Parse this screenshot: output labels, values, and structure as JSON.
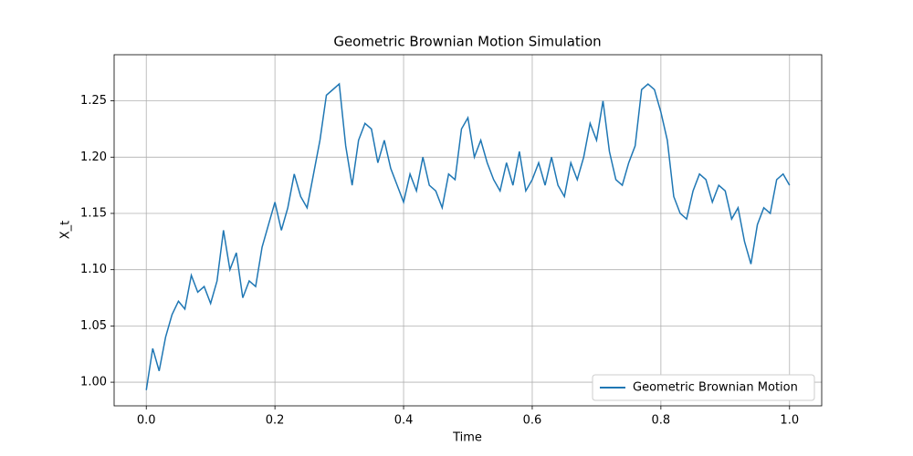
{
  "chart_data": {
    "type": "line",
    "title": "Geometric Brownian Motion Simulation",
    "x_label": "Time",
    "y_label": "X_t",
    "x": [
      0,
      0.01,
      0.02,
      0.03,
      0.04,
      0.05,
      0.06,
      0.07,
      0.08,
      0.09,
      0.1,
      0.11,
      0.12,
      0.13,
      0.14,
      0.15,
      0.16,
      0.17,
      0.18,
      0.19,
      0.2,
      0.21,
      0.22,
      0.23,
      0.24,
      0.25,
      0.26,
      0.27,
      0.28,
      0.29,
      0.3,
      0.31,
      0.32,
      0.33,
      0.34,
      0.35,
      0.36,
      0.37,
      0.38,
      0.39,
      0.4,
      0.41,
      0.42,
      0.43,
      0.44,
      0.45,
      0.46,
      0.47,
      0.48,
      0.49,
      0.5,
      0.51,
      0.52,
      0.53,
      0.54,
      0.55,
      0.56,
      0.57,
      0.58,
      0.59,
      0.6,
      0.61,
      0.62,
      0.63,
      0.64,
      0.65,
      0.66,
      0.67,
      0.68,
      0.69,
      0.7,
      0.71,
      0.72,
      0.73,
      0.74,
      0.75,
      0.76,
      0.77,
      0.78,
      0.79,
      0.8,
      0.81,
      0.82,
      0.83,
      0.84,
      0.85,
      0.86,
      0.87,
      0.88,
      0.89,
      0.9,
      0.91,
      0.92,
      0.93,
      0.94,
      0.95,
      0.96,
      0.97,
      0.98,
      0.99,
      1
    ],
    "series": [
      {
        "name": "Geometric Brownian Motion",
        "color": "#1f77b4",
        "values": [
          0.993,
          1.03,
          1.01,
          1.04,
          1.06,
          1.072,
          1.065,
          1.095,
          1.08,
          1.085,
          1.07,
          1.09,
          1.135,
          1.1,
          1.115,
          1.075,
          1.09,
          1.085,
          1.12,
          1.14,
          1.16,
          1.135,
          1.155,
          1.185,
          1.165,
          1.155,
          1.185,
          1.215,
          1.255,
          1.26,
          1.265,
          1.21,
          1.175,
          1.215,
          1.23,
          1.225,
          1.195,
          1.215,
          1.19,
          1.175,
          1.16,
          1.185,
          1.17,
          1.2,
          1.175,
          1.17,
          1.155,
          1.185,
          1.18,
          1.225,
          1.235,
          1.2,
          1.215,
          1.195,
          1.18,
          1.17,
          1.195,
          1.175,
          1.205,
          1.17,
          1.18,
          1.195,
          1.175,
          1.2,
          1.175,
          1.165,
          1.195,
          1.18,
          1.2,
          1.23,
          1.215,
          1.25,
          1.205,
          1.18,
          1.175,
          1.195,
          1.21,
          1.26,
          1.265,
          1.26,
          1.24,
          1.215,
          1.165,
          1.15,
          1.145,
          1.17,
          1.185,
          1.18,
          1.16,
          1.175,
          1.17,
          1.145,
          1.155,
          1.125,
          1.105,
          1.14,
          1.155,
          1.15,
          1.18,
          1.185,
          1.175
        ]
      }
    ],
    "xlim": [
      -0.05,
      1.05
    ],
    "ylim": [
      0.979,
      1.291
    ],
    "xticks": [
      {
        "value": 0,
        "label": "0.0"
      },
      0.2,
      0.4,
      0.6,
      0.8,
      {
        "value": 1,
        "label": "1.0"
      }
    ],
    "yticks": [
      {
        "value": 1,
        "label": "1.00"
      },
      1.05,
      {
        "value": 1.1,
        "label": "1.10"
      },
      1.15,
      {
        "value": 1.2,
        "label": "1.20"
      },
      1.25
    ],
    "grid": true,
    "legend": "lower right"
  }
}
